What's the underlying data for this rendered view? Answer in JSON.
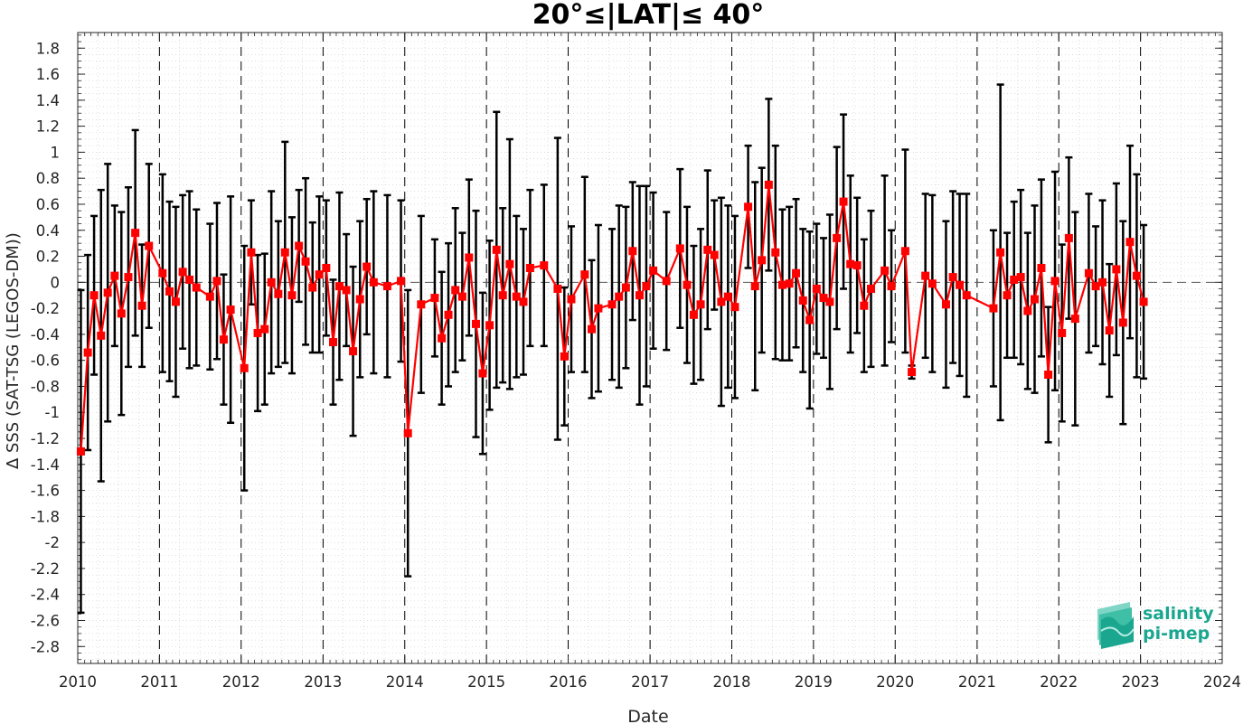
{
  "chart_data": {
    "type": "line",
    "title": "20°≤|LAT|≤ 40°",
    "xlabel": "Date",
    "ylabel": "∆ SSS (SAT-TSG (LEGOS-DM))",
    "xlim": [
      "2010-01-01",
      "2024-01-01"
    ],
    "ylim": [
      -2.93,
      1.92
    ],
    "x_ticks": [
      "2010",
      "2011",
      "2012",
      "2013",
      "2014",
      "2015",
      "2016",
      "2017",
      "2018",
      "2019",
      "2020",
      "2021",
      "2022",
      "2023",
      "2024"
    ],
    "y_ticks": [
      "1.8",
      "1.6",
      "1.4",
      "1.2",
      "1",
      "0.8",
      "0.6",
      "0.4",
      "0.2",
      "0",
      "-0.2",
      "-0.4",
      "-0.6",
      "-0.8",
      "-1",
      "-1.2",
      "-1.4",
      "-1.6",
      "-1.8",
      "-2",
      "-2.2",
      "-2.4",
      "-2.6",
      "-2.8"
    ],
    "grid": "minor dotted",
    "year_lines": "dashed",
    "zero_line": "dashed",
    "series_color": "#ff0000",
    "errorbar_color": "#000000",
    "series": [
      {
        "points": [
          {
            "date": "2010-01-15",
            "y": -1.3,
            "std": 1.24
          },
          {
            "date": "2010-02-15",
            "y": -0.54,
            "std": 0.75
          },
          {
            "date": "2010-03-15",
            "y": -0.1,
            "std": 0.61
          },
          {
            "date": "2010-04-15",
            "y": -0.41,
            "std": 1.12
          },
          {
            "date": "2010-05-15",
            "y": -0.08,
            "std": 0.99
          },
          {
            "date": "2010-06-15",
            "y": 0.05,
            "std": 0.54
          },
          {
            "date": "2010-07-15",
            "y": -0.24,
            "std": 0.78
          },
          {
            "date": "2010-08-15",
            "y": 0.04,
            "std": 0.69
          },
          {
            "date": "2010-09-15",
            "y": 0.38,
            "std": 0.79
          },
          {
            "date": "2010-10-15",
            "y": -0.18,
            "std": 0.47
          },
          {
            "date": "2010-11-15",
            "y": 0.28,
            "std": 0.63
          },
          {
            "date": "2011-01-15",
            "y": 0.07,
            "std": 0.76
          },
          {
            "date": "2011-02-15",
            "y": -0.07,
            "std": 0.69
          },
          {
            "date": "2011-03-15",
            "y": -0.15,
            "std": 0.73
          },
          {
            "date": "2011-04-15",
            "y": 0.08,
            "std": 0.59
          },
          {
            "date": "2011-05-15",
            "y": 0.02,
            "std": 0.68
          },
          {
            "date": "2011-06-15",
            "y": -0.04,
            "std": 0.6
          },
          {
            "date": "2011-08-15",
            "y": -0.11,
            "std": 0.56
          },
          {
            "date": "2011-09-15",
            "y": 0.01,
            "std": 0.6
          },
          {
            "date": "2011-10-15",
            "y": -0.44,
            "std": 0.5
          },
          {
            "date": "2011-11-15",
            "y": -0.21,
            "std": 0.87
          },
          {
            "date": "2012-01-15",
            "y": -0.66,
            "std": 0.94
          },
          {
            "date": "2012-02-15",
            "y": 0.23,
            "std": 0.4
          },
          {
            "date": "2012-03-15",
            "y": -0.39,
            "std": 0.6
          },
          {
            "date": "2012-04-15",
            "y": -0.36,
            "std": 0.58
          },
          {
            "date": "2012-05-15",
            "y": 0.0,
            "std": 0.7
          },
          {
            "date": "2012-06-15",
            "y": -0.09,
            "std": 0.56
          },
          {
            "date": "2012-07-15",
            "y": 0.23,
            "std": 0.85
          },
          {
            "date": "2012-08-15",
            "y": -0.1,
            "std": 0.6
          },
          {
            "date": "2012-09-15",
            "y": 0.28,
            "std": 0.43
          },
          {
            "date": "2012-10-15",
            "y": 0.16,
            "std": 0.64
          },
          {
            "date": "2012-11-15",
            "y": -0.04,
            "std": 0.5
          },
          {
            "date": "2012-12-15",
            "y": 0.06,
            "std": 0.6
          },
          {
            "date": "2013-01-15",
            "y": 0.11,
            "std": 0.52
          },
          {
            "date": "2013-02-15",
            "y": -0.46,
            "std": 0.48
          },
          {
            "date": "2013-03-15",
            "y": -0.03,
            "std": 0.72
          },
          {
            "date": "2013-04-15",
            "y": -0.06,
            "std": 0.43
          },
          {
            "date": "2013-05-15",
            "y": -0.53,
            "std": 0.65
          },
          {
            "date": "2013-06-15",
            "y": -0.13,
            "std": 0.6
          },
          {
            "date": "2013-07-15",
            "y": 0.12,
            "std": 0.52
          },
          {
            "date": "2013-08-15",
            "y": 0.0,
            "std": 0.7
          },
          {
            "date": "2013-10-15",
            "y": -0.03,
            "std": 0.7
          },
          {
            "date": "2013-12-15",
            "y": 0.01,
            "std": 0.62
          },
          {
            "date": "2014-01-15",
            "y": -1.16,
            "std": 1.1
          },
          {
            "date": "2014-03-15",
            "y": -0.17,
            "std": 0.68
          },
          {
            "date": "2014-05-15",
            "y": -0.12,
            "std": 0.45
          },
          {
            "date": "2014-06-15",
            "y": -0.43,
            "std": 0.51
          },
          {
            "date": "2014-07-15",
            "y": -0.25,
            "std": 0.55
          },
          {
            "date": "2014-08-15",
            "y": -0.06,
            "std": 0.63
          },
          {
            "date": "2014-09-15",
            "y": -0.11,
            "std": 0.49
          },
          {
            "date": "2014-10-15",
            "y": 0.19,
            "std": 0.6
          },
          {
            "date": "2014-11-15",
            "y": -0.32,
            "std": 0.87
          },
          {
            "date": "2014-12-15",
            "y": -0.7,
            "std": 0.62
          },
          {
            "date": "2015-01-15",
            "y": -0.33,
            "std": 0.65
          },
          {
            "date": "2015-02-15",
            "y": 0.25,
            "std": 1.06
          },
          {
            "date": "2015-03-15",
            "y": -0.1,
            "std": 0.67
          },
          {
            "date": "2015-04-15",
            "y": 0.14,
            "std": 0.96
          },
          {
            "date": "2015-05-15",
            "y": -0.11,
            "std": 0.62
          },
          {
            "date": "2015-06-15",
            "y": -0.15,
            "std": 0.56
          },
          {
            "date": "2015-07-15",
            "y": 0.11,
            "std": 0.6
          },
          {
            "date": "2015-09-15",
            "y": 0.13,
            "std": 0.62
          },
          {
            "date": "2015-11-15",
            "y": -0.05,
            "std": 1.16
          },
          {
            "date": "2015-12-15",
            "y": -0.57,
            "std": 0.53
          },
          {
            "date": "2016-01-15",
            "y": -0.13,
            "std": 0.56
          },
          {
            "date": "2016-03-15",
            "y": 0.06,
            "std": 0.75
          },
          {
            "date": "2016-04-15",
            "y": -0.36,
            "std": 0.53
          },
          {
            "date": "2016-05-15",
            "y": -0.2,
            "std": 0.64
          },
          {
            "date": "2016-07-15",
            "y": -0.17,
            "std": 0.58
          },
          {
            "date": "2016-08-15",
            "y": -0.11,
            "std": 0.7
          },
          {
            "date": "2016-09-15",
            "y": -0.04,
            "std": 0.62
          },
          {
            "date": "2016-10-15",
            "y": 0.24,
            "std": 0.53
          },
          {
            "date": "2016-11-15",
            "y": -0.1,
            "std": 0.84
          },
          {
            "date": "2016-12-15",
            "y": -0.03,
            "std": 0.77
          },
          {
            "date": "2017-01-15",
            "y": 0.09,
            "std": 0.6
          },
          {
            "date": "2017-03-15",
            "y": 0.01,
            "std": 0.53
          },
          {
            "date": "2017-05-15",
            "y": 0.26,
            "std": 0.61
          },
          {
            "date": "2017-06-15",
            "y": -0.02,
            "std": 0.6
          },
          {
            "date": "2017-07-15",
            "y": -0.25,
            "std": 0.53
          },
          {
            "date": "2017-08-15",
            "y": -0.17,
            "std": 0.58
          },
          {
            "date": "2017-09-15",
            "y": 0.25,
            "std": 0.61
          },
          {
            "date": "2017-10-15",
            "y": 0.21,
            "std": 0.42
          },
          {
            "date": "2017-11-15",
            "y": -0.15,
            "std": 0.8
          },
          {
            "date": "2017-12-15",
            "y": -0.11,
            "std": 0.7
          },
          {
            "date": "2018-01-15",
            "y": -0.19,
            "std": 0.7
          },
          {
            "date": "2018-03-15",
            "y": 0.58,
            "std": 0.47
          },
          {
            "date": "2018-04-15",
            "y": -0.03,
            "std": 0.8
          },
          {
            "date": "2018-05-15",
            "y": 0.17,
            "std": 0.71
          },
          {
            "date": "2018-06-15",
            "y": 0.75,
            "std": 0.66
          },
          {
            "date": "2018-07-15",
            "y": 0.23,
            "std": 0.82
          },
          {
            "date": "2018-08-15",
            "y": -0.02,
            "std": 0.58
          },
          {
            "date": "2018-09-15",
            "y": -0.01,
            "std": 0.59
          },
          {
            "date": "2018-10-15",
            "y": 0.07,
            "std": 0.57
          },
          {
            "date": "2018-11-15",
            "y": -0.14,
            "std": 0.55
          },
          {
            "date": "2018-12-15",
            "y": -0.29,
            "std": 0.68
          },
          {
            "date": "2019-01-15",
            "y": -0.05,
            "std": 0.5
          },
          {
            "date": "2019-02-15",
            "y": -0.12,
            "std": 0.46
          },
          {
            "date": "2019-03-15",
            "y": -0.15,
            "std": 0.67
          },
          {
            "date": "2019-04-15",
            "y": 0.34,
            "std": 0.7
          },
          {
            "date": "2019-05-15",
            "y": 0.62,
            "std": 0.67
          },
          {
            "date": "2019-06-15",
            "y": 0.14,
            "std": 0.68
          },
          {
            "date": "2019-07-15",
            "y": 0.13,
            "std": 0.52
          },
          {
            "date": "2019-08-15",
            "y": -0.18,
            "std": 0.51
          },
          {
            "date": "2019-09-15",
            "y": -0.05,
            "std": 0.6
          },
          {
            "date": "2019-11-15",
            "y": 0.09,
            "std": 0.73
          },
          {
            "date": "2019-12-15",
            "y": -0.03,
            "std": 0.43
          },
          {
            "date": "2020-02-15",
            "y": 0.24,
            "std": 0.78
          },
          {
            "date": "2020-03-15",
            "y": -0.69,
            "std": 0.05
          },
          {
            "date": "2020-05-15",
            "y": 0.05,
            "std": 0.63
          },
          {
            "date": "2020-06-15",
            "y": -0.01,
            "std": 0.68
          },
          {
            "date": "2020-08-15",
            "y": -0.17,
            "std": 0.64
          },
          {
            "date": "2020-09-15",
            "y": 0.04,
            "std": 0.66
          },
          {
            "date": "2020-10-15",
            "y": -0.02,
            "std": 0.7
          },
          {
            "date": "2020-11-15",
            "y": -0.1,
            "std": 0.78
          },
          {
            "date": "2021-03-15",
            "y": -0.2,
            "std": 0.6
          },
          {
            "date": "2021-04-15",
            "y": 0.23,
            "std": 1.29
          },
          {
            "date": "2021-05-15",
            "y": -0.1,
            "std": 0.48
          },
          {
            "date": "2021-06-15",
            "y": 0.02,
            "std": 0.6
          },
          {
            "date": "2021-07-15",
            "y": 0.04,
            "std": 0.67
          },
          {
            "date": "2021-08-15",
            "y": -0.22,
            "std": 0.6
          },
          {
            "date": "2021-09-15",
            "y": -0.13,
            "std": 0.72
          },
          {
            "date": "2021-10-15",
            "y": 0.11,
            "std": 0.68
          },
          {
            "date": "2021-11-15",
            "y": -0.71,
            "std": 0.52
          },
          {
            "date": "2021-12-15",
            "y": 0.01,
            "std": 0.84
          },
          {
            "date": "2022-01-15",
            "y": -0.39,
            "std": 0.68
          },
          {
            "date": "2022-02-15",
            "y": 0.34,
            "std": 0.62
          },
          {
            "date": "2022-03-15",
            "y": -0.28,
            "std": 0.82
          },
          {
            "date": "2022-05-15",
            "y": 0.07,
            "std": 0.61
          },
          {
            "date": "2022-06-15",
            "y": -0.03,
            "std": 0.46
          },
          {
            "date": "2022-07-15",
            "y": 0.0,
            "std": 0.63
          },
          {
            "date": "2022-08-15",
            "y": -0.37,
            "std": 0.51
          },
          {
            "date": "2022-09-15",
            "y": 0.1,
            "std": 0.66
          },
          {
            "date": "2022-10-15",
            "y": -0.31,
            "std": 0.78
          },
          {
            "date": "2022-11-15",
            "y": 0.31,
            "std": 0.74
          },
          {
            "date": "2022-12-15",
            "y": 0.05,
            "std": 0.78
          },
          {
            "date": "2023-01-15",
            "y": -0.15,
            "std": 0.59
          }
        ]
      }
    ]
  },
  "logo": {
    "line1": "salinity",
    "line2": "pi-mep"
  }
}
